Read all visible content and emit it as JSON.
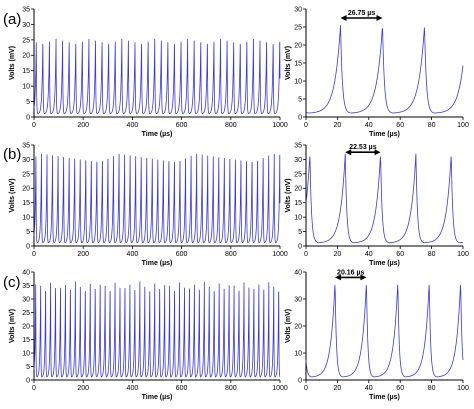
{
  "chart_data": [
    {
      "type": "line",
      "panel": "(a)",
      "title": "",
      "xlabel": "Time (µs)",
      "ylabel": "Volts (mV)",
      "xlim": [
        0,
        1000
      ],
      "ylim": [
        0,
        35
      ],
      "xticks": [
        0,
        200,
        400,
        600,
        800,
        1000
      ],
      "yticks": [
        0,
        5,
        10,
        15,
        20,
        25,
        30,
        35
      ],
      "period_us": 26.75,
      "peak_mV": 25.5,
      "baseline_mV": 1.0
    },
    {
      "type": "line",
      "panel": "",
      "title": "",
      "xlabel": "Time (µs)",
      "ylabel": "Volts (mV)",
      "xlim": [
        0,
        100
      ],
      "ylim": [
        0,
        30
      ],
      "xticks": [
        0,
        20,
        40,
        60,
        80,
        100
      ],
      "yticks": [
        0,
        5,
        10,
        15,
        20,
        25,
        30
      ],
      "peak_times_us": [
        22,
        48.75,
        75.5
      ],
      "peak_mV": 25.5,
      "baseline_mV": 1.0,
      "annotation": {
        "text": "26.75 µs",
        "from_us": 22,
        "to_us": 48.75,
        "level_mV": 27.5
      }
    },
    {
      "type": "line",
      "panel": "(b)",
      "title": "",
      "xlabel": "Time (µs)",
      "ylabel": "Volts (mV)",
      "xlim": [
        0,
        1000
      ],
      "ylim": [
        0,
        35
      ],
      "xticks": [
        0,
        200,
        400,
        600,
        800,
        1000
      ],
      "yticks": [
        0,
        5,
        10,
        15,
        20,
        25,
        30,
        35
      ],
      "period_us": 22.53,
      "peak_mV": 32,
      "baseline_mV": 1.0
    },
    {
      "type": "line",
      "panel": "",
      "title": "",
      "xlabel": "Time (µs)",
      "ylabel": "Volts (mV)",
      "xlim": [
        0,
        100
      ],
      "ylim": [
        0,
        35
      ],
      "xticks": [
        0,
        20,
        40,
        60,
        80,
        100
      ],
      "yticks": [
        0,
        5,
        10,
        15,
        20,
        25,
        30,
        35
      ],
      "peak_times_us": [
        2.5,
        25,
        47.5,
        70,
        92.5
      ],
      "peak_mV": 32,
      "baseline_mV": 1.0,
      "annotation": {
        "text": "22.53 µs",
        "from_us": 25,
        "to_us": 47.5,
        "level_mV": 32.5
      }
    },
    {
      "type": "line",
      "panel": "(c)",
      "title": "",
      "xlabel": "Time (µs)",
      "ylabel": "Volts (mV)",
      "xlim": [
        0,
        1000
      ],
      "ylim": [
        0,
        40
      ],
      "xticks": [
        0,
        200,
        400,
        600,
        800,
        1000
      ],
      "yticks": [
        0,
        5,
        10,
        15,
        20,
        25,
        30,
        35,
        40
      ],
      "period_us": 20.16,
      "peak_mV": 36.5,
      "baseline_mV": 1.0
    },
    {
      "type": "line",
      "panel": "",
      "title": "",
      "xlabel": "Time (µs)",
      "ylabel": "Volts (mV)",
      "xlim": [
        0,
        100
      ],
      "ylim": [
        0,
        40
      ],
      "xticks": [
        0,
        20,
        40,
        60,
        80,
        100
      ],
      "yticks": [
        0,
        10,
        20,
        30,
        40
      ],
      "peak_times_us": [
        18.5,
        38.5,
        58.5,
        78.5,
        98.5
      ],
      "peak_mV": 36.5,
      "baseline_mV": 1.0,
      "annotation": {
        "text": "20.16 µs",
        "from_us": 18.5,
        "to_us": 38.5,
        "level_mV": 38
      }
    }
  ],
  "colors": {
    "trace": "#3a3ad8",
    "axes": "#000000"
  }
}
